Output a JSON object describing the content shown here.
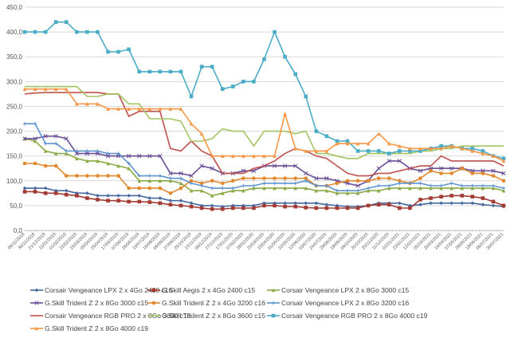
{
  "chart_data": {
    "type": "line",
    "title": "",
    "xlabel": "",
    "ylabel": "",
    "ylim": [
      0,
      450
    ],
    "yticks": [
      "0,0",
      "50,0",
      "100,0",
      "150,0",
      "200,0",
      "250,0",
      "300,0",
      "350,0",
      "400,0",
      "450,0"
    ],
    "grid": true,
    "legend_position": "bottom",
    "x": [
      "09/11/2018",
      "30/11/2018",
      "21/12/2018",
      "11/01/2019",
      "01/02/2019",
      "22/02/2019",
      "15/03/2019",
      "05/04/2019",
      "26/04/2019",
      "17/05/2019",
      "07/06/2019",
      "28/06/2019",
      "19/07/2019",
      "16/08/2019",
      "06/09/2019",
      "27/09/2019",
      "25/10/2019",
      "15/11/2019",
      "06/12/2019",
      "27/12/2019",
      "17/01/2020",
      "07/02/2020",
      "28/02/2020",
      "20/03/2020",
      "10/04/2020",
      "01/05/2020",
      "22/05/2020",
      "12/06/2020",
      "03/07/2020",
      "24/07/2020",
      "28/08/2020",
      "18/09/2020",
      "09/10/2020",
      "31/10/2020",
      "20/11/2020",
      "11/12/2020",
      "01/01/2021",
      "22/01/2021",
      "12/02/2021",
      "05/03/2021",
      "26/03/2021",
      "16/04/2021",
      "07/05/2021",
      "28/05/2021",
      "18/06/2021",
      "09/07/2021",
      "30/07/2021"
    ],
    "series": [
      {
        "name": "Corsair Vengeance LPX 2 x 4Go 2400 c16",
        "color": "#44689f",
        "marker": "diamond",
        "values": [
          85,
          85,
          85,
          80,
          80,
          75,
          75,
          70,
          70,
          70,
          70,
          70,
          65,
          65,
          60,
          60,
          55,
          50,
          50,
          48,
          50,
          50,
          50,
          55,
          55,
          55,
          55,
          55,
          55,
          52,
          50,
          48,
          48,
          50,
          55,
          55,
          55,
          50,
          52,
          55,
          55,
          55,
          55,
          55,
          52,
          50,
          48
        ]
      },
      {
        "name": "G.Skill Aegis 2 x 4Go 2400 c15",
        "color": "#a23b33",
        "marker": "square",
        "values": [
          78,
          78,
          75,
          75,
          72,
          70,
          65,
          62,
          60,
          60,
          58,
          58,
          57,
          55,
          52,
          50,
          48,
          45,
          43,
          43,
          45,
          45,
          45,
          50,
          50,
          48,
          48,
          46,
          45,
          45,
          45,
          45,
          45,
          50,
          52,
          52,
          45,
          45,
          62,
          65,
          68,
          70,
          70,
          68,
          65,
          58,
          50
        ]
      },
      {
        "name": "Corsair Vengeance LPX 2 x 8Go 3000 c15",
        "color": "#8aaa45",
        "marker": "triangle",
        "values": [
          185,
          180,
          160,
          155,
          155,
          145,
          140,
          140,
          135,
          130,
          125,
          100,
          100,
          100,
          100,
          95,
          80,
          80,
          70,
          75,
          80,
          80,
          85,
          85,
          85,
          85,
          85,
          85,
          80,
          80,
          75,
          75,
          75,
          80,
          80,
          85,
          85,
          85,
          85,
          85,
          85,
          85,
          85,
          85,
          85,
          85,
          80
        ]
      },
      {
        "name": "G.Skill Trident Z 2 x 8Go 3000 c15",
        "color": "#6a4e98",
        "marker": "x",
        "values": [
          185,
          185,
          190,
          190,
          185,
          155,
          155,
          155,
          150,
          150,
          150,
          150,
          150,
          150,
          115,
          115,
          110,
          130,
          125,
          115,
          115,
          120,
          120,
          130,
          130,
          130,
          130,
          115,
          105,
          105,
          100,
          95,
          90,
          100,
          125,
          140,
          140,
          125,
          120,
          125,
          125,
          125,
          125,
          120,
          120,
          120,
          115
        ]
      },
      {
        "name": "G.Skill Trident Z 2 x 4Go 3200 c16",
        "color": "#e0892f",
        "marker": "circle",
        "values": [
          135,
          135,
          130,
          130,
          110,
          110,
          110,
          110,
          110,
          110,
          85,
          85,
          85,
          85,
          75,
          85,
          100,
          95,
          100,
          95,
          100,
          105,
          105,
          105,
          105,
          105,
          105,
          105,
          90,
          90,
          95,
          100,
          100,
          100,
          105,
          105,
          100,
          95,
          105,
          120,
          115,
          115,
          125,
          115,
          115,
          110,
          100
        ]
      },
      {
        "name": "Corsair Vengeance LPX 2 x 8Go 3200 c16",
        "color": "#5f93d0",
        "marker": "plus",
        "values": [
          215,
          215,
          175,
          175,
          160,
          160,
          160,
          160,
          155,
          155,
          135,
          110,
          110,
          110,
          105,
          105,
          95,
          90,
          85,
          85,
          85,
          90,
          90,
          95,
          95,
          95,
          95,
          100,
          90,
          90,
          80,
          80,
          80,
          85,
          90,
          90,
          95,
          95,
          95,
          90,
          90,
          95,
          90,
          90,
          90,
          90,
          85
        ]
      },
      {
        "name": "Corsair Vengeance RGB PRO 2 x 8Go 3600 c18",
        "color": "#c0504d",
        "marker": "none",
        "values": [
          275,
          277,
          278,
          278,
          278,
          278,
          278,
          278,
          275,
          275,
          230,
          240,
          240,
          240,
          165,
          160,
          180,
          160,
          150,
          115,
          115,
          115,
          125,
          130,
          140,
          155,
          165,
          160,
          150,
          145,
          130,
          115,
          110,
          110,
          115,
          115,
          120,
          125,
          130,
          130,
          150,
          140,
          140,
          140,
          140,
          140,
          130
        ]
      },
      {
        "name": "G.Skill Trident Z 2 x 8Go 3600 c15",
        "color": "#a4c462",
        "marker": "none",
        "values": [
          290,
          290,
          290,
          290,
          290,
          290,
          270,
          270,
          275,
          275,
          255,
          255,
          225,
          225,
          225,
          220,
          180,
          180,
          185,
          205,
          200,
          200,
          170,
          200,
          200,
          200,
          195,
          200,
          155,
          155,
          150,
          145,
          145,
          155,
          155,
          155,
          155,
          155,
          160,
          160,
          165,
          165,
          170,
          170,
          170,
          170,
          170
        ]
      },
      {
        "name": "Corsair Vengeance RGB PRO 2 x 8Go 4000 c19",
        "color": "#4aacc6",
        "marker": "square",
        "values": [
          400,
          400,
          400,
          420,
          420,
          400,
          400,
          400,
          360,
          360,
          365,
          320,
          320,
          320,
          320,
          320,
          270,
          330,
          330,
          285,
          290,
          300,
          300,
          345,
          400,
          350,
          315,
          270,
          200,
          190,
          180,
          180,
          160,
          160,
          160,
          155,
          160,
          160,
          160,
          165,
          170,
          170,
          165,
          165,
          160,
          150,
          145
        ]
      },
      {
        "name": "G.Skill Trident Z 2 x 8Go 4000 c19",
        "color": "#f79646",
        "marker": "triangle",
        "values": [
          285,
          285,
          285,
          285,
          285,
          255,
          255,
          255,
          245,
          245,
          245,
          245,
          245,
          245,
          245,
          245,
          215,
          195,
          150,
          150,
          150,
          150,
          150,
          150,
          150,
          235,
          165,
          160,
          160,
          160,
          175,
          175,
          175,
          175,
          195,
          175,
          170,
          165,
          165,
          165,
          165,
          170,
          165,
          160,
          155,
          150,
          140
        ]
      }
    ]
  }
}
